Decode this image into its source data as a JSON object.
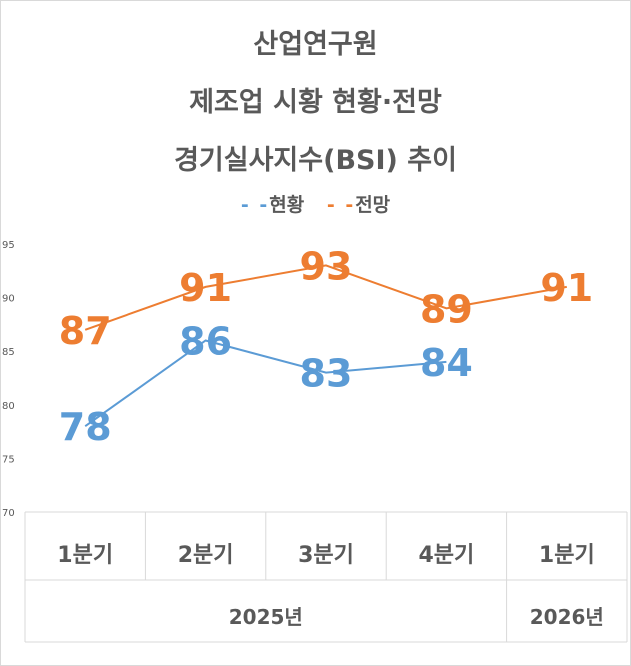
{
  "chart_data": {
    "type": "line",
    "title_lines": [
      "산업연구원",
      "제조업 시황 현황·전망",
      "경기실사지수(BSI) 추이"
    ],
    "categories": [
      "1분기",
      "2분기",
      "3분기",
      "4분기",
      "1분기"
    ],
    "groups": [
      {
        "label": "2025년",
        "span": [
          0,
          3
        ]
      },
      {
        "label": "2026년",
        "span": [
          4,
          4
        ]
      }
    ],
    "ylim": [
      70,
      95
    ],
    "yticks": [
      70,
      75,
      80,
      85,
      90,
      95
    ],
    "legend_position": "top",
    "series": [
      {
        "name": "현황",
        "color": "#5b9bd5",
        "values": [
          78,
          86,
          83,
          84,
          null
        ]
      },
      {
        "name": "전망",
        "color": "#ed7d31",
        "values": [
          87,
          91,
          93,
          89,
          91
        ]
      }
    ]
  }
}
